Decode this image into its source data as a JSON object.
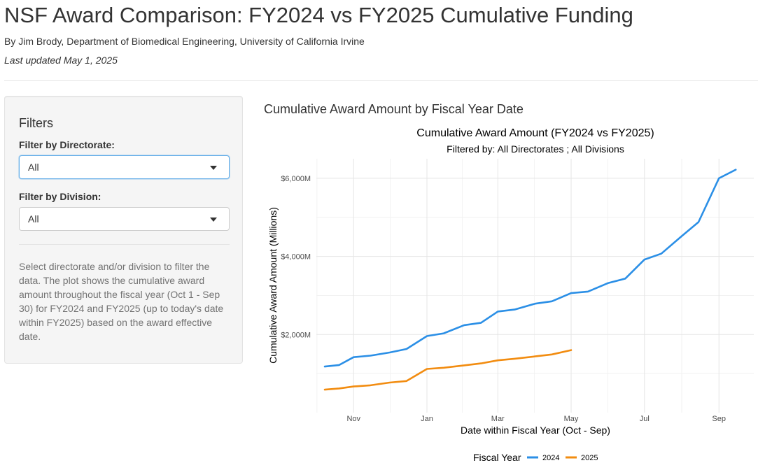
{
  "header": {
    "title": "NSF Award Comparison: FY2024 vs FY2025 Cumulative Funding",
    "byline": "By Jim Brody, Department of Biomedical Engineering, University of California Irvine",
    "updated": "Last updated May 1, 2025"
  },
  "sidebar": {
    "heading": "Filters",
    "directorate_label": "Filter by Directorate:",
    "directorate_value": "All",
    "division_label": "Filter by Division:",
    "division_value": "All",
    "help": "Select directorate and/or division to filter the data. The plot shows the cumulative award amount throughout the fiscal year (Oct 1 - Sep 30) for FY2024 and FY2025 (up to today's date within FY2025) based on the award effective date."
  },
  "main": {
    "heading": "Cumulative Award Amount by Fiscal Year Date"
  },
  "colors": {
    "fy2024": "#2B8FE6",
    "fy2025": "#F28C10",
    "grid_major": "#e5e5e5",
    "grid_minor": "#f2f2f2"
  },
  "chart_data": {
    "type": "line",
    "title": "Cumulative Award Amount (FY2024 vs FY2025)",
    "subtitle": "Filtered by: All Directorates ; All Divisions",
    "xlabel": "Date within Fiscal Year (Oct - Sep)",
    "ylabel": "Cumulative Award Amount (Millions)",
    "legend_title": "Fiscal Year",
    "legend_position": "bottom",
    "x_tick_labels": [
      "Nov",
      "Jan",
      "Mar",
      "May",
      "Jul",
      "Sep"
    ],
    "x_ticks": [
      "2024-11-01",
      "2025-01-01",
      "2025-03-01",
      "2025-05-01",
      "2025-07-01",
      "2025-09-01"
    ],
    "y_tick_labels": [
      "$2,000M",
      "$4,000M",
      "$6,000M"
    ],
    "y_ticks": [
      2000,
      4000,
      6000
    ],
    "xlim": [
      "2024-10-01",
      "2025-09-30"
    ],
    "ylim": [
      0,
      6500
    ],
    "grid": true,
    "series": [
      {
        "name": "2024",
        "points": [
          [
            "2024-10-08",
            1180
          ],
          [
            "2024-10-20",
            1220
          ],
          [
            "2024-11-01",
            1420
          ],
          [
            "2024-11-15",
            1460
          ],
          [
            "2024-12-01",
            1540
          ],
          [
            "2024-12-15",
            1630
          ],
          [
            "2025-01-01",
            1960
          ],
          [
            "2025-01-15",
            2030
          ],
          [
            "2025-02-01",
            2240
          ],
          [
            "2025-02-15",
            2300
          ],
          [
            "2025-03-01",
            2590
          ],
          [
            "2025-03-15",
            2640
          ],
          [
            "2025-04-01",
            2790
          ],
          [
            "2025-04-15",
            2850
          ],
          [
            "2025-05-01",
            3060
          ],
          [
            "2025-05-15",
            3100
          ],
          [
            "2025-06-01",
            3320
          ],
          [
            "2025-06-15",
            3430
          ],
          [
            "2025-07-01",
            3920
          ],
          [
            "2025-07-15",
            4070
          ],
          [
            "2025-08-01",
            4520
          ],
          [
            "2025-08-15",
            4880
          ],
          [
            "2025-09-01",
            6000
          ],
          [
            "2025-09-15",
            6220
          ]
        ]
      },
      {
        "name": "2025",
        "points": [
          [
            "2024-10-08",
            590
          ],
          [
            "2024-10-20",
            620
          ],
          [
            "2024-11-01",
            670
          ],
          [
            "2024-11-15",
            700
          ],
          [
            "2024-12-01",
            770
          ],
          [
            "2024-12-15",
            810
          ],
          [
            "2025-01-01",
            1120
          ],
          [
            "2025-01-15",
            1150
          ],
          [
            "2025-02-01",
            1210
          ],
          [
            "2025-02-15",
            1260
          ],
          [
            "2025-03-01",
            1340
          ],
          [
            "2025-03-15",
            1380
          ],
          [
            "2025-04-01",
            1440
          ],
          [
            "2025-04-15",
            1490
          ],
          [
            "2025-05-01",
            1600
          ]
        ]
      }
    ]
  }
}
